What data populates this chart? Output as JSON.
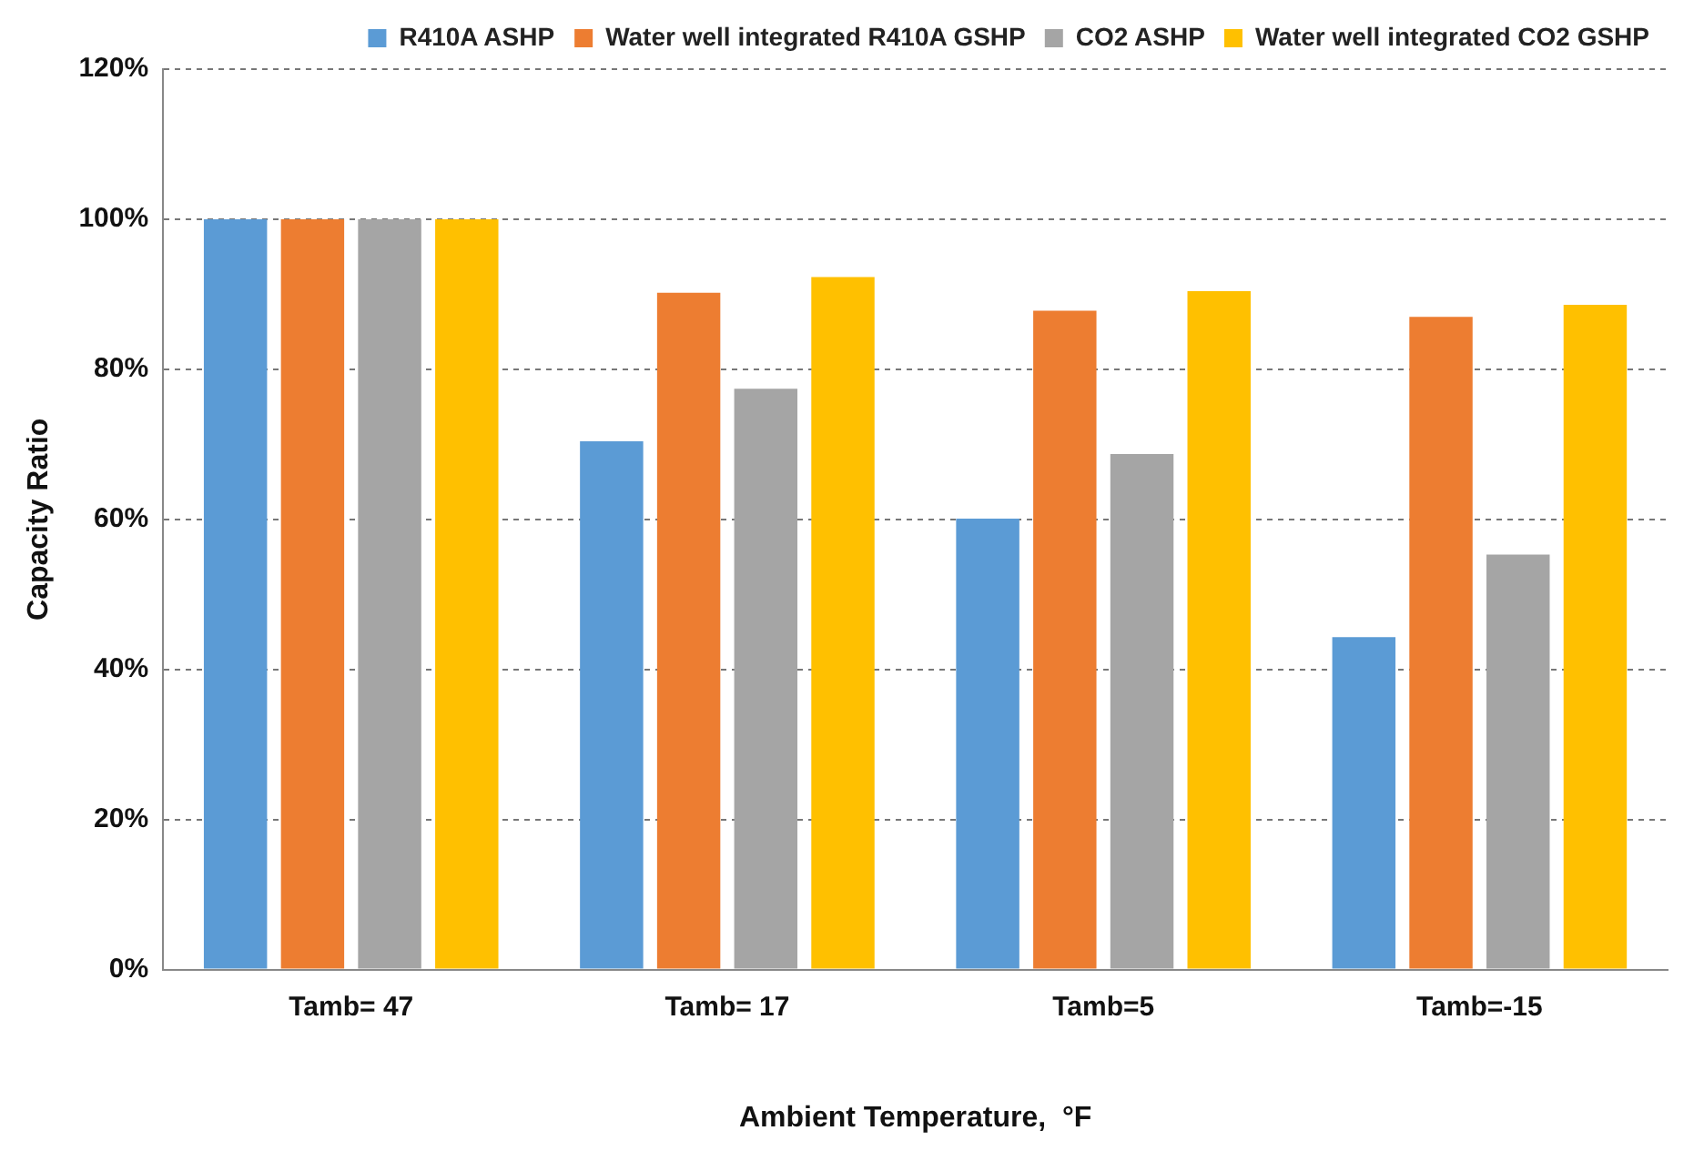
{
  "chart_data": {
    "type": "bar",
    "xlabel": "Ambient Temperature,  °F",
    "ylabel": "Capacity Ratio",
    "categories": [
      "Tamb= 47",
      "Tamb= 17",
      "Tamb=5",
      "Tamb=-15"
    ],
    "series": [
      {
        "name": "R410A ASHP",
        "color": "#5b9bd5",
        "values": [
          100,
          70.4,
          60.1,
          44.3
        ]
      },
      {
        "name": "Water well integrated R410A GSHP",
        "color": "#ed7d31",
        "values": [
          100,
          90.2,
          87.8,
          87.0
        ]
      },
      {
        "name": "CO2 ASHP",
        "color": "#a5a5a5",
        "values": [
          100,
          77.4,
          68.7,
          55.3
        ]
      },
      {
        "name": "Water well integrated CO2 GSHP",
        "color": "#ffc000",
        "values": [
          100,
          92.3,
          90.4,
          88.6
        ]
      }
    ],
    "ylim": [
      0,
      120
    ],
    "yticks": [
      {
        "value": 0,
        "label": "0%"
      },
      {
        "value": 20,
        "label": "20%"
      },
      {
        "value": 40,
        "label": "40%"
      },
      {
        "value": 60,
        "label": "60%"
      },
      {
        "value": 80,
        "label": "80%"
      },
      {
        "value": 100,
        "label": "100%"
      },
      {
        "value": 120,
        "label": "120%"
      }
    ],
    "grid": "y",
    "legend": "top right"
  }
}
